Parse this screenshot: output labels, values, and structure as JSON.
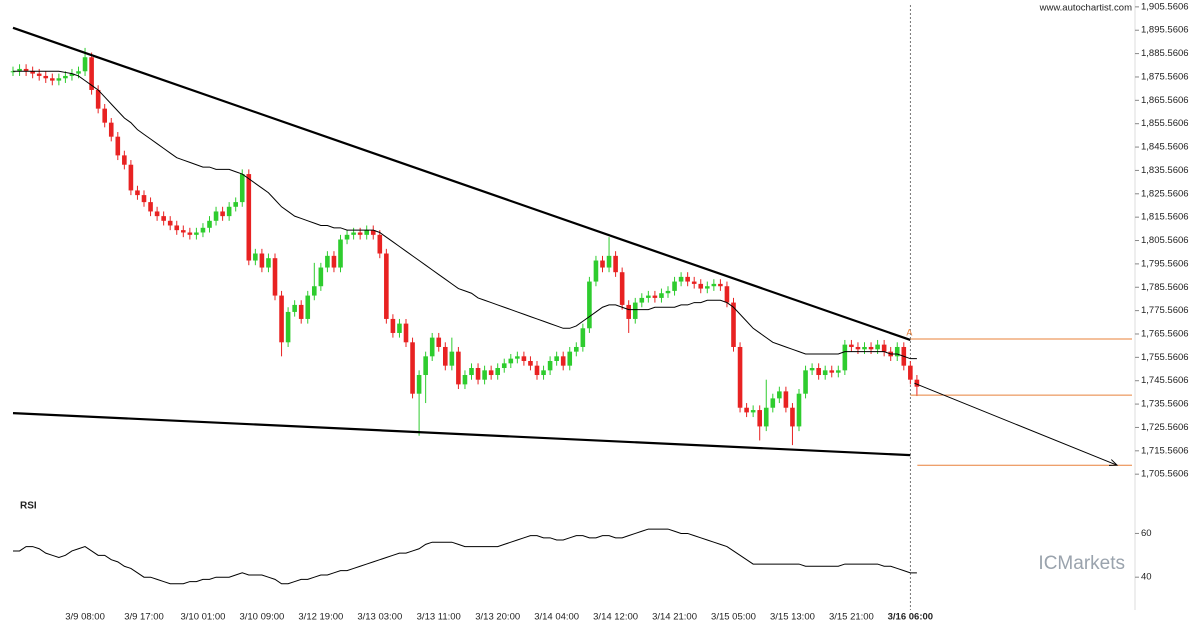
{
  "chart_data": [
    {
      "type": "candlestick",
      "watermark": "www.autochartist.com",
      "categories": [
        null,
        null,
        null,
        null,
        null,
        null,
        null,
        null,
        null,
        null,
        null,
        "3/9 08:00",
        null,
        null,
        null,
        null,
        null,
        null,
        null,
        null,
        "3/9 17:00",
        null,
        null,
        null,
        null,
        null,
        null,
        null,
        null,
        "3/10 01:00",
        null,
        null,
        null,
        null,
        null,
        null,
        null,
        null,
        "3/10 09:00",
        null,
        null,
        null,
        null,
        null,
        null,
        null,
        null,
        "3/12 19:00",
        null,
        null,
        null,
        null,
        null,
        null,
        null,
        null,
        "3/13 03:00",
        null,
        null,
        null,
        null,
        null,
        null,
        null,
        null,
        "3/13 11:00",
        null,
        null,
        null,
        null,
        null,
        null,
        null,
        null,
        "3/13 20:00",
        null,
        null,
        null,
        null,
        null,
        null,
        null,
        null,
        "3/14 04:00",
        null,
        null,
        null,
        null,
        null,
        null,
        null,
        null,
        "3/14 12:00",
        null,
        null,
        null,
        null,
        null,
        null,
        null,
        null,
        "3/14 21:00",
        null,
        null,
        null,
        null,
        null,
        null,
        null,
        null,
        "3/15 05:00",
        null,
        null,
        null,
        null,
        null,
        null,
        null,
        null,
        "3/15 13:00",
        null,
        null,
        null,
        null,
        null,
        null,
        null,
        null,
        "3/15 21:00",
        null,
        null,
        null,
        null,
        null,
        null,
        null,
        null,
        "3/16 06:00",
        null
      ],
      "open": [
        1878,
        1878,
        1879,
        1878,
        1877,
        1876,
        1875,
        1874,
        1875,
        1876,
        1877,
        1878,
        1884,
        1870,
        1862,
        1856,
        1850,
        1842,
        1838,
        1827,
        1825,
        1822,
        1818,
        1816,
        1814,
        1812,
        1810,
        1809,
        1808,
        1809,
        1811,
        1814,
        1818,
        1816,
        1820,
        1822,
        1834,
        1797,
        1800,
        1794,
        1798,
        1782,
        1762,
        1775,
        1778,
        1772,
        1782,
        1786,
        1794,
        1799,
        1794,
        1806,
        1808,
        1809,
        1808,
        1810,
        1808,
        1800,
        1772,
        1766,
        1770,
        1762,
        1740,
        1748,
        1756,
        1764,
        1760,
        1752,
        1758,
        1744,
        1748,
        1751,
        1746,
        1750,
        1748,
        1751,
        1753,
        1755,
        1756,
        1754,
        1752,
        1748,
        1750,
        1754,
        1756,
        1752,
        1758,
        1760,
        1768,
        1788,
        1797,
        1794,
        1799,
        1792,
        1778,
        1772,
        1779,
        1781,
        1782,
        1781,
        1783,
        1784,
        1788,
        1790,
        1788,
        1787,
        1785,
        1786,
        1787,
        1786,
        1779,
        1760,
        1734,
        1732,
        1733,
        1726,
        1734,
        1738,
        1741,
        1734,
        1726,
        1740,
        1750,
        1751,
        1748,
        1750,
        1749,
        1750,
        1761,
        1760,
        1759,
        1760,
        1759,
        1761,
        1758,
        1756,
        1760,
        1752,
        1746
      ],
      "high": [
        1880,
        1881,
        1881,
        1880,
        1879,
        1878,
        1877,
        1877,
        1878,
        1879,
        1880,
        1888,
        1886,
        1872,
        1864,
        1858,
        1852,
        1844,
        1840,
        1829,
        1827,
        1824,
        1820,
        1818,
        1816,
        1814,
        1812,
        1811,
        1811,
        1813,
        1816,
        1820,
        1820,
        1822,
        1824,
        1836,
        1836,
        1802,
        1802,
        1800,
        1800,
        1784,
        1777,
        1780,
        1780,
        1784,
        1796,
        1796,
        1801,
        1801,
        1808,
        1810,
        1811,
        1811,
        1812,
        1812,
        1810,
        1802,
        1774,
        1772,
        1772,
        1764,
        1750,
        1758,
        1766,
        1766,
        1762,
        1764,
        1760,
        1750,
        1753,
        1753,
        1752,
        1752,
        1753,
        1755,
        1757,
        1758,
        1758,
        1756,
        1754,
        1752,
        1756,
        1758,
        1758,
        1760,
        1762,
        1770,
        1790,
        1799,
        1799,
        1807,
        1801,
        1794,
        1780,
        1781,
        1783,
        1784,
        1784,
        1785,
        1786,
        1790,
        1792,
        1792,
        1790,
        1789,
        1788,
        1789,
        1789,
        1788,
        1781,
        1762,
        1736,
        1735,
        1735,
        1746,
        1740,
        1743,
        1743,
        1736,
        1742,
        1752,
        1753,
        1753,
        1752,
        1752,
        1752,
        1763,
        1763,
        1762,
        1762,
        1762,
        1763,
        1763,
        1760,
        1762,
        1762,
        1754,
        1748
      ],
      "low": [
        1876,
        1876,
        1876,
        1875,
        1874,
        1873,
        1872,
        1872,
        1873,
        1874,
        1875,
        1876,
        1868,
        1860,
        1854,
        1848,
        1840,
        1836,
        1825,
        1823,
        1820,
        1816,
        1814,
        1812,
        1810,
        1808,
        1807,
        1806,
        1806,
        1807,
        1809,
        1812,
        1814,
        1814,
        1818,
        1820,
        1795,
        1795,
        1792,
        1792,
        1780,
        1756,
        1760,
        1773,
        1770,
        1770,
        1780,
        1784,
        1792,
        1792,
        1792,
        1804,
        1806,
        1806,
        1806,
        1806,
        1798,
        1770,
        1764,
        1764,
        1760,
        1738,
        1722,
        1736,
        1754,
        1758,
        1750,
        1750,
        1742,
        1742,
        1746,
        1744,
        1744,
        1746,
        1746,
        1749,
        1751,
        1753,
        1752,
        1750,
        1746,
        1746,
        1748,
        1752,
        1750,
        1750,
        1756,
        1758,
        1766,
        1786,
        1792,
        1792,
        1790,
        1776,
        1766,
        1770,
        1777,
        1779,
        1779,
        1779,
        1781,
        1782,
        1786,
        1786,
        1785,
        1783,
        1783,
        1784,
        1784,
        1777,
        1758,
        1732,
        1730,
        1730,
        1720,
        1724,
        1732,
        1736,
        1732,
        1718,
        1724,
        1738,
        1748,
        1746,
        1746,
        1747,
        1747,
        1748,
        1758,
        1757,
        1757,
        1757,
        1757,
        1756,
        1754,
        1754,
        1750,
        1744,
        1739
      ],
      "close": [
        1878,
        1879,
        1878,
        1877,
        1876,
        1875,
        1874,
        1875,
        1876,
        1877,
        1878,
        1884,
        1870,
        1862,
        1856,
        1850,
        1842,
        1838,
        1827,
        1825,
        1822,
        1818,
        1816,
        1814,
        1812,
        1810,
        1809,
        1808,
        1809,
        1811,
        1814,
        1818,
        1816,
        1820,
        1822,
        1834,
        1797,
        1800,
        1794,
        1798,
        1782,
        1762,
        1775,
        1778,
        1772,
        1782,
        1786,
        1794,
        1799,
        1794,
        1806,
        1808,
        1809,
        1808,
        1810,
        1808,
        1800,
        1772,
        1766,
        1770,
        1762,
        1740,
        1748,
        1756,
        1764,
        1760,
        1752,
        1758,
        1744,
        1748,
        1751,
        1746,
        1750,
        1748,
        1751,
        1753,
        1755,
        1756,
        1754,
        1752,
        1748,
        1750,
        1754,
        1756,
        1752,
        1758,
        1760,
        1768,
        1788,
        1797,
        1794,
        1799,
        1792,
        1778,
        1772,
        1779,
        1781,
        1782,
        1781,
        1783,
        1784,
        1788,
        1790,
        1788,
        1787,
        1785,
        1786,
        1787,
        1786,
        1779,
        1760,
        1734,
        1732,
        1733,
        1726,
        1734,
        1738,
        1741,
        1734,
        1726,
        1740,
        1750,
        1751,
        1748,
        1750,
        1749,
        1750,
        1761,
        1760,
        1759,
        1760,
        1759,
        1761,
        1758,
        1756,
        1760,
        1752,
        1746,
        1743
      ],
      "up_color": "#2ecc2e",
      "down_color": "#e82222",
      "ma": {
        "color": "#000000",
        "values": [
          1878,
          1878,
          1878,
          1878,
          1878,
          1878,
          1878,
          1878,
          1877.5,
          1877,
          1876,
          1874,
          1872,
          1870,
          1867,
          1864,
          1861,
          1858,
          1856,
          1853,
          1851,
          1849,
          1847,
          1845,
          1843,
          1841,
          1840,
          1839,
          1838,
          1837,
          1837,
          1836,
          1836,
          1836,
          1835,
          1834,
          1832,
          1830,
          1828,
          1826,
          1823,
          1820,
          1818,
          1816,
          1815,
          1814,
          1813,
          1812,
          1812,
          1811,
          1811,
          1810,
          1810,
          1810,
          1810,
          1810,
          1809,
          1807,
          1805,
          1803,
          1801,
          1799,
          1797,
          1795,
          1793,
          1791,
          1789,
          1787,
          1785,
          1784,
          1783,
          1781,
          1780,
          1779,
          1778,
          1777,
          1776,
          1775,
          1774,
          1773,
          1772,
          1771,
          1770,
          1769,
          1768,
          1768,
          1769,
          1771,
          1773,
          1775,
          1777,
          1778,
          1778,
          1777,
          1776,
          1776,
          1776,
          1776,
          1777,
          1777,
          1777,
          1777,
          1778,
          1778,
          1779,
          1779,
          1780,
          1780,
          1780,
          1779,
          1777,
          1774,
          1771,
          1768,
          1766,
          1764,
          1762,
          1761,
          1760,
          1759,
          1758,
          1757,
          1757,
          1757,
          1757,
          1757,
          1757,
          1758,
          1758,
          1758,
          1758,
          1758,
          1758,
          1758,
          1757,
          1757,
          1756,
          1755,
          1755
        ]
      },
      "trendlines": [
        {
          "start": 1896.6,
          "end": 1763.0
        },
        {
          "start": 1731.7,
          "end": 1713.7
        }
      ],
      "levels": [
        1763.4,
        1739.4,
        1709.4
      ],
      "level_color": "#e8803a",
      "pattern_label": "A",
      "projection": {
        "start": 1744.5,
        "end": 1709.4
      },
      "ylim": [
        1700.5,
        1908.5
      ],
      "yticks": [
        {
          "value": 1705.5606,
          "label": "1,705.5606"
        },
        {
          "value": 1715.5606,
          "label": "1,715.5606"
        },
        {
          "value": 1725.5606,
          "label": "1,725.5606"
        },
        {
          "value": 1735.5606,
          "label": "1,735.5606"
        },
        {
          "value": 1745.5606,
          "label": "1,745.5606"
        },
        {
          "value": 1755.5606,
          "label": "1,755.5606"
        },
        {
          "value": 1765.5606,
          "label": "1,765.5606"
        },
        {
          "value": 1775.5606,
          "label": "1,775.5606"
        },
        {
          "value": 1785.5606,
          "label": "1,785.5606"
        },
        {
          "value": 1795.5606,
          "label": "1,795.5606"
        },
        {
          "value": 1805.5606,
          "label": "1,805.5606"
        },
        {
          "value": 1815.5606,
          "label": "1,815.5606"
        },
        {
          "value": 1825.5606,
          "label": "1,825.5606"
        },
        {
          "value": 1835.5606,
          "label": "1,835.5606"
        },
        {
          "value": 1845.5606,
          "label": "1,845.5606"
        },
        {
          "value": 1855.5606,
          "label": "1,855.5606"
        },
        {
          "value": 1865.5606,
          "label": "1,865.5606"
        },
        {
          "value": 1875.5606,
          "label": "1,875.5606"
        },
        {
          "value": 1885.5606,
          "label": "1,885.5606"
        },
        {
          "value": 1895.5606,
          "label": "1,895.5606"
        },
        {
          "value": 1905.5606,
          "label": "1,905.5606"
        }
      ]
    },
    {
      "type": "line",
      "title": "RSI",
      "watermark": "ICMarkets",
      "color": "#000000",
      "values": [
        52,
        52,
        54,
        54,
        53,
        51,
        50,
        49,
        50,
        52,
        53,
        54,
        52,
        50,
        50,
        48,
        47,
        45,
        44,
        42,
        40,
        40,
        39,
        38,
        37,
        37,
        37,
        38,
        38,
        39,
        39,
        40,
        40,
        40,
        41,
        42,
        41,
        41,
        41,
        40,
        39,
        37,
        37,
        38,
        39,
        39,
        40,
        41,
        41,
        42,
        43,
        43,
        44,
        45,
        46,
        47,
        48,
        49,
        50,
        51,
        51,
        52,
        53,
        55,
        56,
        56,
        56,
        56,
        55,
        54,
        54,
        54,
        54,
        54,
        54,
        55,
        56,
        57,
        58,
        59,
        59,
        58,
        58,
        57,
        57,
        58,
        59,
        59,
        58,
        58,
        59,
        59,
        58,
        58,
        59,
        60,
        61,
        62,
        62,
        62,
        62,
        61,
        60,
        60,
        59,
        58,
        57,
        56,
        55,
        54,
        52,
        50,
        48,
        46,
        46,
        46,
        46,
        46,
        46,
        46,
        46,
        45,
        45,
        45,
        45,
        45,
        45,
        46,
        46,
        46,
        46,
        46,
        46,
        45,
        45,
        44,
        43,
        42,
        42
      ],
      "ylim": [
        25,
        73
      ],
      "yticks": [
        40,
        60
      ]
    }
  ]
}
